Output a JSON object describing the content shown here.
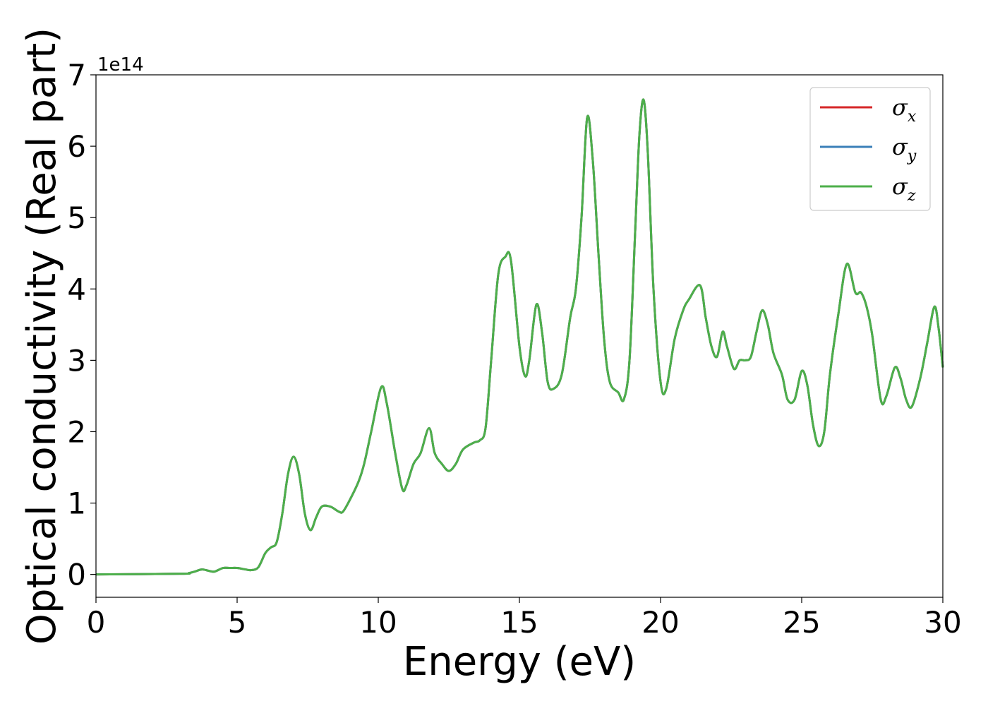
{
  "chart_data": {
    "type": "line",
    "xlabel": "Energy (eV)",
    "ylabel": "Optical conductivity (Real part)",
    "y_offset_label": "1e14",
    "xlim": [
      0,
      30
    ],
    "ylim": [
      -0.32,
      7.0
    ],
    "x_ticks": [
      0,
      5,
      10,
      15,
      20,
      25,
      30
    ],
    "x_tick_labels": [
      "0",
      "5",
      "10",
      "15",
      "20",
      "25",
      "30"
    ],
    "y_ticks": [
      0,
      1,
      2,
      3,
      4,
      5,
      6,
      7
    ],
    "y_tick_labels": [
      "0",
      "1",
      "2",
      "3",
      "4",
      "5",
      "6",
      "7"
    ],
    "grid": false,
    "legend_position": "top-right",
    "series": [
      {
        "name": "σ",
        "subscript": "x",
        "color": "#d62728",
        "values": "shared"
      },
      {
        "name": "σ",
        "subscript": "y",
        "color": "#3a7fb8",
        "values": "shared"
      },
      {
        "name": "σ",
        "subscript": "z",
        "color": "#4daf4a",
        "values": "shared"
      }
    ],
    "x": [
      0,
      3.0,
      3.3,
      3.5,
      3.75,
      4.0,
      4.2,
      4.5,
      4.75,
      5.0,
      5.3,
      5.5,
      5.75,
      6.0,
      6.2,
      6.4,
      6.6,
      6.8,
      7.0,
      7.2,
      7.4,
      7.6,
      7.8,
      8.0,
      8.3,
      8.6,
      8.75,
      9.0,
      9.3,
      9.5,
      9.75,
      10.1,
      10.3,
      10.6,
      10.85,
      11.0,
      11.25,
      11.5,
      11.8,
      12.0,
      12.25,
      12.5,
      12.75,
      13.0,
      13.4,
      13.6,
      13.8,
      14.0,
      14.25,
      14.5,
      14.7,
      15.0,
      15.2,
      15.35,
      15.6,
      15.8,
      16.0,
      16.2,
      16.5,
      16.8,
      17.0,
      17.2,
      17.4,
      17.6,
      17.8,
      18.0,
      18.2,
      18.5,
      18.7,
      18.9,
      19.1,
      19.25,
      19.4,
      19.55,
      19.75,
      20.0,
      20.2,
      20.5,
      20.8,
      21.0,
      21.4,
      21.6,
      21.8,
      22.0,
      22.2,
      22.35,
      22.6,
      22.8,
      23.0,
      23.2,
      23.4,
      23.6,
      23.8,
      24.0,
      24.3,
      24.5,
      24.75,
      25.0,
      25.2,
      25.4,
      25.6,
      25.8,
      26.0,
      26.3,
      26.6,
      26.9,
      27.1,
      27.3,
      27.5,
      27.8,
      28.0,
      28.3,
      28.5,
      28.7,
      28.9,
      29.2,
      29.45,
      29.7,
      29.85,
      30.0
    ],
    "values": [
      0,
      0.01,
      0.02,
      0.04,
      0.07,
      0.05,
      0.04,
      0.09,
      0.09,
      0.09,
      0.07,
      0.06,
      0.1,
      0.3,
      0.38,
      0.45,
      0.85,
      1.4,
      1.65,
      1.4,
      0.85,
      0.62,
      0.8,
      0.95,
      0.95,
      0.88,
      0.88,
      1.05,
      1.3,
      1.55,
      2.0,
      2.62,
      2.4,
      1.7,
      1.2,
      1.25,
      1.55,
      1.7,
      2.05,
      1.7,
      1.55,
      1.45,
      1.55,
      1.75,
      1.85,
      1.88,
      2.05,
      3.0,
      4.2,
      4.45,
      4.4,
      3.2,
      2.78,
      3.0,
      3.78,
      3.4,
      2.7,
      2.6,
      2.8,
      3.6,
      4.0,
      5.0,
      6.4,
      5.8,
      4.5,
      3.3,
      2.7,
      2.55,
      2.45,
      3.0,
      4.8,
      6.15,
      6.65,
      5.9,
      4.0,
      2.7,
      2.6,
      3.3,
      3.7,
      3.85,
      4.05,
      3.6,
      3.2,
      3.05,
      3.4,
      3.2,
      2.88,
      3.0,
      3.0,
      3.05,
      3.4,
      3.7,
      3.5,
      3.1,
      2.8,
      2.45,
      2.45,
      2.85,
      2.65,
      2.1,
      1.8,
      2.0,
      2.8,
      3.65,
      4.35,
      3.95,
      3.95,
      3.75,
      3.35,
      2.45,
      2.5,
      2.9,
      2.75,
      2.45,
      2.35,
      2.75,
      3.25,
      3.75,
      3.45,
      2.9
    ]
  }
}
